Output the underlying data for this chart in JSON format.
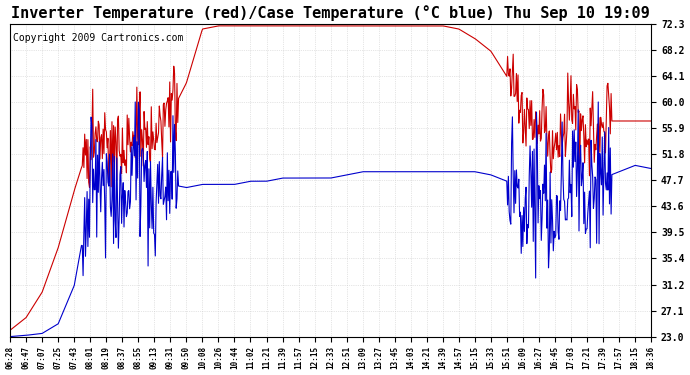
{
  "title": "Inverter Temperature (red)/Case Temperature (°C blue) Thu Sep 10 19:09",
  "copyright": "Copyright 2009 Cartronics.com",
  "ylim": [
    23.0,
    72.3
  ],
  "yticks": [
    23.0,
    27.1,
    31.2,
    35.4,
    39.5,
    43.6,
    47.7,
    51.8,
    55.9,
    60.0,
    64.1,
    68.2,
    72.3
  ],
  "xtick_labels": [
    "06:28",
    "06:47",
    "07:07",
    "07:25",
    "07:43",
    "08:01",
    "08:19",
    "08:37",
    "08:55",
    "09:13",
    "09:31",
    "09:50",
    "10:08",
    "10:26",
    "10:44",
    "11:02",
    "11:21",
    "11:39",
    "11:57",
    "12:15",
    "12:33",
    "12:51",
    "13:09",
    "13:27",
    "13:45",
    "14:03",
    "14:21",
    "14:39",
    "14:57",
    "15:15",
    "15:33",
    "15:51",
    "16:09",
    "16:27",
    "16:45",
    "17:03",
    "17:21",
    "17:39",
    "17:57",
    "18:15",
    "18:36"
  ],
  "background_color": "#ffffff",
  "grid_color": "#cccccc",
  "red_color": "#cc0000",
  "blue_color": "#0000cc",
  "title_fontsize": 11,
  "copyright_fontsize": 7
}
